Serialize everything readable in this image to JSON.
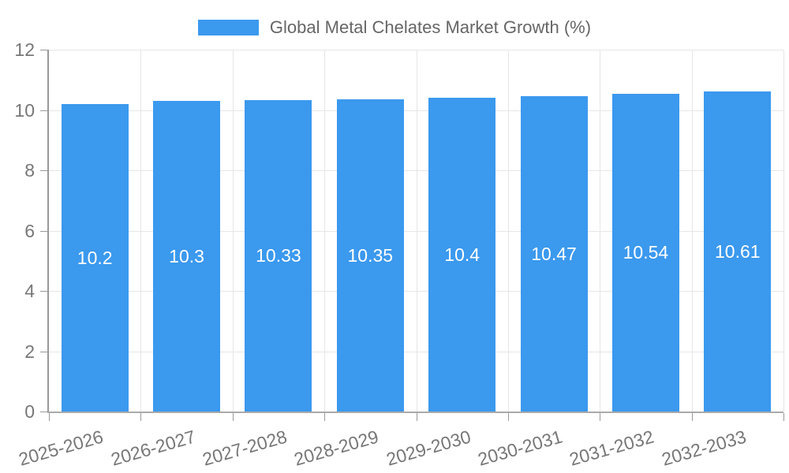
{
  "legend": {
    "label": "Global Metal Chelates Market Growth (%)"
  },
  "chart_data": {
    "type": "bar",
    "title": "Global Metal Chelates Market Growth (%)",
    "categories": [
      "2025-2026",
      "2026-2027",
      "2027-2028",
      "2028-2029",
      "2029-2030",
      "2030-2031",
      "2031-2032",
      "2032-2033"
    ],
    "values": [
      10.2,
      10.3,
      10.33,
      10.35,
      10.4,
      10.47,
      10.54,
      10.61
    ],
    "bar_labels": [
      "10.2",
      "10.3",
      "10.33",
      "10.35",
      "10.4",
      "10.47",
      "10.54",
      "10.61"
    ],
    "xlabel": "",
    "ylabel": "",
    "ylim": [
      0,
      12
    ],
    "yticks": [
      0,
      2,
      4,
      6,
      8,
      10,
      12
    ],
    "grid": true,
    "legend_position": "top",
    "colors": {
      "bar": "#3b99ee",
      "label_text": "#ffffff",
      "axis_text": "#777777",
      "gridline": "#e6e6e6"
    }
  }
}
